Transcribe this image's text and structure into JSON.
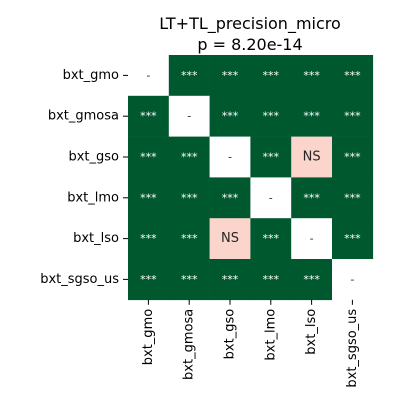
{
  "chart_data": {
    "type": "heatmap",
    "title": "LT+TL_precision_micro",
    "subtitle": "p = 8.20e-14",
    "row_labels": [
      "bxt_gmo",
      "bxt_gmosa",
      "bxt_gso",
      "bxt_lmo",
      "bxt_lso",
      "bxt_sgso_us"
    ],
    "col_labels": [
      "bxt_gmo",
      "bxt_gmosa",
      "bxt_gso",
      "bxt_lmo",
      "bxt_lso",
      "bxt_sgso_us"
    ],
    "cells": [
      [
        "-",
        "***",
        "***",
        "***",
        "***",
        "***"
      ],
      [
        "***",
        "-",
        "***",
        "***",
        "***",
        "***"
      ],
      [
        "***",
        "***",
        "-",
        "***",
        "NS",
        "***"
      ],
      [
        "***",
        "***",
        "***",
        "-",
        "***",
        "***"
      ],
      [
        "***",
        "***",
        "NS",
        "***",
        "-",
        "***"
      ],
      [
        "***",
        "***",
        "***",
        "***",
        "***",
        "-"
      ]
    ],
    "colors": {
      "significant": "#00582f",
      "not_significant": "#fbd5cc",
      "diagonal": "#ffffff",
      "text_on_dark": "#ffffff",
      "text_on_light": "#262626"
    }
  }
}
